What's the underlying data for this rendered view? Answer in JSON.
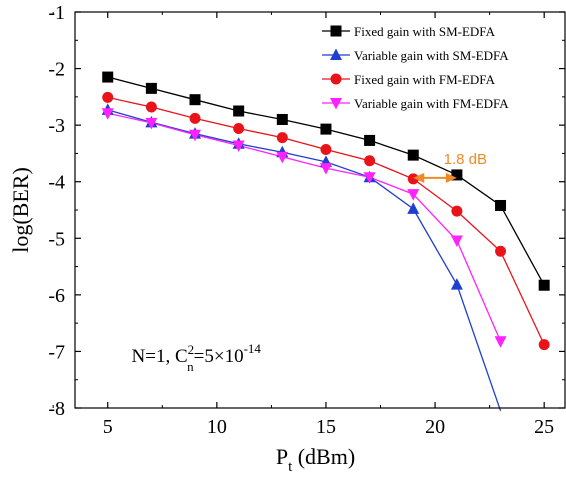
{
  "chart_data": {
    "type": "line",
    "x": [
      5,
      7,
      9,
      11,
      13,
      15,
      17,
      19,
      21,
      23,
      25
    ],
    "xlim": [
      3.5,
      26
    ],
    "ylim": [
      -8,
      -1
    ],
    "xticks": [
      5,
      10,
      15,
      20,
      25
    ],
    "yticks": [
      -1,
      -2,
      -3,
      -4,
      -5,
      -6,
      -7,
      -8
    ],
    "xticks_text": [
      "5",
      "10",
      "15",
      "20",
      "25"
    ],
    "yticks_text": [
      "-1",
      "-2",
      "-3",
      "-4",
      "-5",
      "-6",
      "-7",
      "-8"
    ],
    "xlabel": {
      "main": "P",
      "sub": "t",
      "rest": " (dBm)"
    },
    "ylabel": "log(BER)",
    "grid": false,
    "legend_position": "top-right",
    "series": [
      {
        "name": "Fixed gain with SM-EDFA",
        "color": "#000000",
        "marker": "square",
        "values": [
          -2.15,
          -2.35,
          -2.55,
          -2.75,
          -2.9,
          -3.07,
          -3.27,
          -3.53,
          -3.88,
          -4.42,
          -5.83
        ]
      },
      {
        "name": "Variable gain with SM-EDFA",
        "color": "#1f3fcf",
        "marker": "triangle-up",
        "values": [
          -2.73,
          -2.95,
          -3.15,
          -3.33,
          -3.48,
          -3.65,
          -3.92,
          -4.48,
          -5.82,
          -8.05,
          null
        ]
      },
      {
        "name": "Fixed gain with FM-EDFA",
        "color": "#e8141a",
        "marker": "circle",
        "values": [
          -2.51,
          -2.68,
          -2.88,
          -3.06,
          -3.22,
          -3.43,
          -3.63,
          -3.95,
          -4.52,
          -5.23,
          -6.88
        ]
      },
      {
        "name": "Variable gain with FM-EDFA",
        "color": "#ff22ff",
        "marker": "triangle-down",
        "values": [
          -2.79,
          -2.96,
          -3.17,
          -3.36,
          -3.56,
          -3.76,
          -3.92,
          -4.22,
          -5.04,
          -6.82,
          null
        ]
      }
    ],
    "annotations": {
      "gap": {
        "text": "1.8 dB",
        "color": "#f08a24",
        "x_from": 19,
        "x_to": 21,
        "y": -3.95,
        "text_x": 21.4,
        "text_y": -3.72
      },
      "condition": {
        "prefix": "N=1, C",
        "sup1": "2",
        "sub1": "n",
        "mid": "=5×10",
        "sup2": "-14",
        "x": 6.0,
        "y": -6.9
      }
    }
  }
}
